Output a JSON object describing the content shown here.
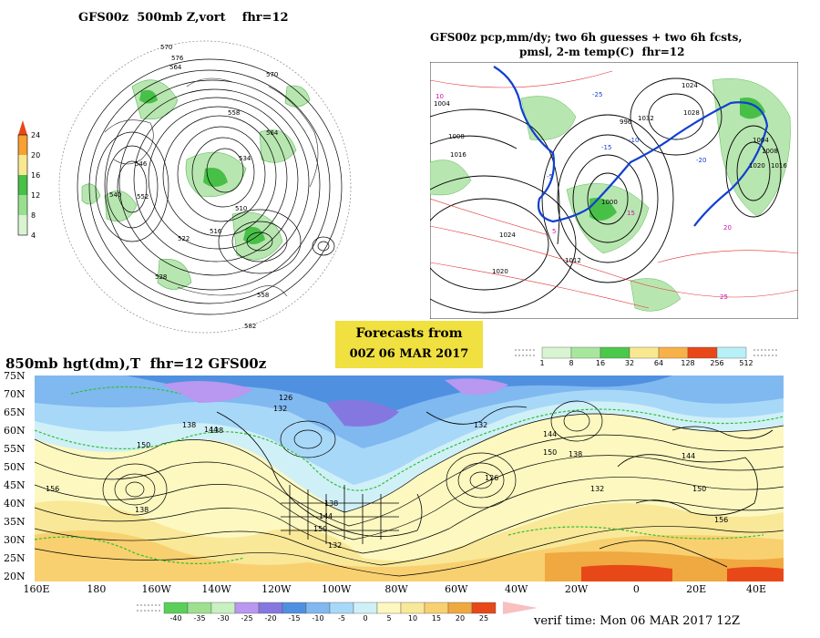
{
  "panel_500mb": {
    "title": "GFS00z  500mb Z,vort    fhr=12",
    "colorbar_ticks": [
      "24",
      "20",
      "16",
      "12",
      "8",
      "4"
    ],
    "contour_labels": [
      "570",
      "576",
      "564",
      "558",
      "552",
      "546",
      "540",
      "534",
      "528",
      "522",
      "516",
      "510",
      "582",
      "570",
      "564",
      "558"
    ]
  },
  "panel_precip": {
    "title_line1": "GFS00z pcp,mm/dy; two 6h guesses + two 6h fcsts,",
    "title_line2": "pmsl, 2-m temp(C)  fhr=12",
    "isobar_labels": [
      "1024",
      "1020",
      "1016",
      "1012",
      "1008",
      "1004",
      "1000",
      "996",
      "1028",
      "1032",
      "1024",
      "1020",
      "1016",
      "1008",
      "1004"
    ],
    "temp_labels": [
      "10",
      "15",
      "20",
      "25",
      "-20",
      "-15",
      "-10",
      "-5",
      "5",
      "-25"
    ]
  },
  "forecast_box": {
    "line1": "Forecasts from",
    "line2": "00Z 06 MAR 2017"
  },
  "precip_colorbar": {
    "ticks": [
      "1",
      "8",
      "16",
      "32",
      "64",
      "128",
      "256",
      "512"
    ],
    "colors": [
      "#d8f4d0",
      "#a8e6a0",
      "#4cc84a",
      "#f8e890",
      "#f8b048",
      "#e84818",
      "#b8f0f8"
    ]
  },
  "panel_850mb": {
    "title": "850mb hgt(dm),T  fhr=12 GFS00z",
    "lat_labels": [
      "75N",
      "70N",
      "65N",
      "60N",
      "55N",
      "50N",
      "45N",
      "40N",
      "35N",
      "30N",
      "25N",
      "20N"
    ],
    "lon_labels": [
      "160E",
      "180",
      "160W",
      "140W",
      "120W",
      "100W",
      "80W",
      "60W",
      "40W",
      "20W",
      "0",
      "20E",
      "40E"
    ],
    "height_labels": [
      "126",
      "132",
      "138",
      "144",
      "150",
      "156",
      "138",
      "132",
      "144",
      "150",
      "126",
      "138",
      "144",
      "150",
      "156",
      "132",
      "138",
      "144",
      "150",
      "132",
      "138"
    ]
  },
  "temp_colorbar": {
    "ticks": [
      "-40",
      "-35",
      "-30",
      "-25",
      "-20",
      "-15",
      "-10",
      "-5",
      "0",
      "5",
      "10",
      "15",
      "20",
      "25"
    ],
    "colors": [
      "#5ad05a",
      "#9ee090",
      "#c8f0c0",
      "#b898f0",
      "#8478e0",
      "#5090e0",
      "#80b8f0",
      "#a8d8f8",
      "#d0f0f8",
      "#fcf8c0",
      "#f8e898",
      "#f8d070",
      "#f0a840",
      "#e84818"
    ]
  },
  "footer": {
    "verif_time": "verif time: Mon 06 MAR 2017 12Z"
  },
  "colors": {
    "vort_green": "#5ab85a",
    "light_green": "#b8e6b0",
    "blue_freeze": "#1040d0",
    "red_temp": "#e03030",
    "magenta_label": "#d010b0",
    "green_dash": "#30c030",
    "forecast_box_bg": "#f0e040"
  }
}
